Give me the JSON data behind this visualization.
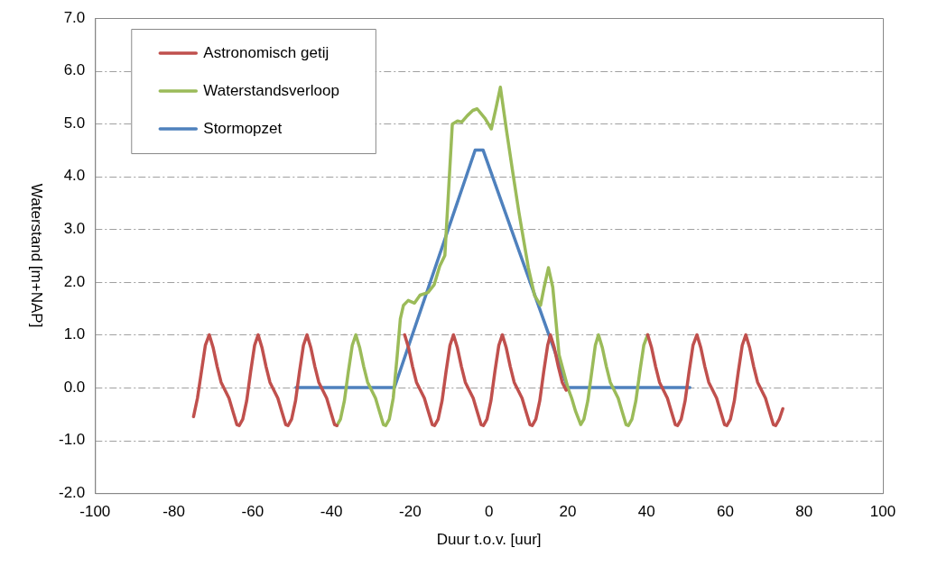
{
  "chart_data": {
    "type": "line",
    "xlabel": "Duur t.o.v. [uur]",
    "ylabel": "Waterstand [m+NAP]",
    "xlim": [
      -100,
      100
    ],
    "xticks": [
      -100,
      -80,
      -60,
      -40,
      -20,
      0,
      20,
      40,
      60,
      80,
      100
    ],
    "ylim": [
      -2,
      7
    ],
    "yticks": [
      {
        "value": -2,
        "label": "-2.0"
      },
      {
        "value": -1,
        "label": "-1.0"
      },
      {
        "value": 0,
        "label": "0.0"
      },
      {
        "value": 1,
        "label": "1.0"
      },
      {
        "value": 2,
        "label": "2.0"
      },
      {
        "value": 3,
        "label": "3.0"
      },
      {
        "value": 4,
        "label": "4.0"
      },
      {
        "value": 5,
        "label": "5.0"
      },
      {
        "value": 6,
        "label": "6.0"
      },
      {
        "value": 7,
        "label": "7.0"
      }
    ],
    "grid": "y",
    "legend": "top left",
    "marker": "none",
    "line_style": "solid",
    "series": [
      {
        "name": "Astronomisch getij",
        "color": "#c0504d",
        "x": [
          -75,
          -74,
          -73,
          -72,
          -71,
          -70,
          -69,
          -68,
          -67,
          -66,
          -65,
          -64,
          -63.4,
          -62.5,
          -61.5,
          -60.5,
          -59.5,
          -58.6,
          -57.6,
          -56.6,
          -55.6,
          -54.6,
          -53.6,
          -52.6,
          -51.6,
          -51,
          -50.1,
          -49.1,
          -48.1,
          -47.1,
          -46.2,
          -45.2,
          -44.2,
          -43.2,
          -42.2,
          -41.2,
          -40.2,
          -39.2,
          -38.6,
          -30,
          -21.4,
          -20.4,
          -19.4,
          -18.4,
          -17.4,
          -16.4,
          -15.4,
          -14.4,
          -13.8,
          -12.9,
          -11.9,
          -10.9,
          -9.9,
          -9,
          -8,
          -7,
          -6,
          -5,
          -4,
          -3,
          -2,
          -1.4,
          -0.5,
          0.5,
          1.5,
          2.5,
          3.4,
          4.4,
          5.4,
          6.4,
          7.4,
          8.4,
          9.4,
          10.4,
          11,
          11.9,
          12.9,
          13.9,
          14.9,
          15.6,
          16.6,
          17.6,
          18.6,
          19.6,
          30,
          40.3,
          41.3,
          42.3,
          43.3,
          44.3,
          45.3,
          46.3,
          47.3,
          47.9,
          48.8,
          49.8,
          50.8,
          51.8,
          52.8,
          53.8,
          54.8,
          55.8,
          56.8,
          57.8,
          58.8,
          59.8,
          60.4,
          61.3,
          62.3,
          63.3,
          64.3,
          65.2,
          66.2,
          67.2,
          68.2,
          69.2,
          70.2,
          71.2,
          72.2,
          72.8,
          73.7,
          74.6
        ],
        "values": [
          -0.55,
          -0.2,
          0.3,
          0.8,
          1.0,
          0.75,
          0.4,
          0.1,
          -0.05,
          -0.2,
          -0.45,
          -0.7,
          -0.72,
          -0.6,
          -0.25,
          0.3,
          0.8,
          1.0,
          0.75,
          0.4,
          0.1,
          -0.05,
          -0.2,
          -0.45,
          -0.7,
          -0.72,
          -0.6,
          -0.25,
          0.3,
          0.8,
          1.0,
          0.75,
          0.4,
          0.1,
          -0.05,
          -0.2,
          -0.45,
          -0.7,
          -0.72,
          null,
          1.0,
          0.75,
          0.4,
          0.1,
          -0.05,
          -0.2,
          -0.45,
          -0.7,
          -0.72,
          -0.6,
          -0.25,
          0.3,
          0.8,
          1.0,
          0.75,
          0.4,
          0.1,
          -0.05,
          -0.2,
          -0.45,
          -0.7,
          -0.72,
          -0.6,
          -0.25,
          0.3,
          0.8,
          1.0,
          0.75,
          0.4,
          0.1,
          -0.05,
          -0.2,
          -0.45,
          -0.7,
          -0.72,
          -0.6,
          -0.25,
          0.3,
          0.8,
          1.0,
          0.75,
          0.4,
          0.1,
          -0.05,
          null,
          1.0,
          0.75,
          0.4,
          0.1,
          -0.05,
          -0.2,
          -0.45,
          -0.7,
          -0.72,
          -0.6,
          -0.25,
          0.3,
          0.8,
          1.0,
          0.75,
          0.4,
          0.1,
          -0.05,
          -0.2,
          -0.45,
          -0.7,
          -0.72,
          -0.6,
          -0.25,
          0.3,
          0.8,
          1.0,
          0.75,
          0.4,
          0.1,
          -0.05,
          -0.2,
          -0.45,
          -0.7,
          -0.72,
          -0.6,
          -0.4
        ]
      },
      {
        "name": "Waterstandsverloop",
        "color": "#9bbb59",
        "x": [
          -38.6,
          -37.7,
          -36.7,
          -35.7,
          -34.7,
          -33.8,
          -32.8,
          -31.8,
          -30.8,
          -29.8,
          -28.8,
          -27.8,
          -26.8,
          -26.2,
          -25.3,
          -24.3,
          -23.3,
          -22.5,
          -21.7,
          -20.5,
          -18.9,
          -17.5,
          -15.5,
          -13.9,
          -12.5,
          -11.2,
          -10.2,
          -9.3,
          -8,
          -6.9,
          -5.5,
          -4.1,
          -3,
          -1,
          0.6,
          1.8,
          2.9,
          4.5,
          6,
          7.6,
          10,
          11.6,
          13.1,
          14,
          15.1,
          16.2,
          17.8,
          20.1,
          21,
          22,
          23.3,
          24.1,
          25.1,
          26.1,
          27,
          27.8,
          28.8,
          29.8,
          30.8,
          31.8,
          32.8,
          33.8,
          34.8,
          35.4,
          36.3,
          37.3,
          38.3,
          39.3,
          40.3
        ],
        "values": [
          -0.72,
          -0.6,
          -0.25,
          0.3,
          0.8,
          1.0,
          0.75,
          0.4,
          0.1,
          -0.05,
          -0.2,
          -0.45,
          -0.7,
          -0.72,
          -0.6,
          -0.2,
          0.6,
          1.3,
          1.56,
          1.65,
          1.6,
          1.75,
          1.8,
          1.95,
          2.3,
          2.5,
          3.8,
          4.99,
          5.05,
          5.03,
          5.15,
          5.25,
          5.28,
          5.1,
          4.9,
          5.3,
          5.69,
          4.85,
          4.1,
          3.32,
          2.27,
          1.74,
          1.56,
          1.9,
          2.27,
          1.9,
          0.62,
          -0.02,
          -0.2,
          -0.45,
          -0.7,
          -0.6,
          -0.25,
          0.3,
          0.8,
          1.0,
          0.75,
          0.4,
          0.1,
          -0.05,
          -0.2,
          -0.45,
          -0.7,
          -0.72,
          -0.6,
          -0.25,
          0.3,
          0.8,
          1.0
        ]
      },
      {
        "name": "Stormopzet",
        "color": "#4f81bd",
        "x": [
          -49,
          -24,
          -3.5,
          -1.5,
          20,
          51
        ],
        "values": [
          0,
          0,
          4.5,
          4.5,
          0,
          0
        ]
      }
    ]
  }
}
